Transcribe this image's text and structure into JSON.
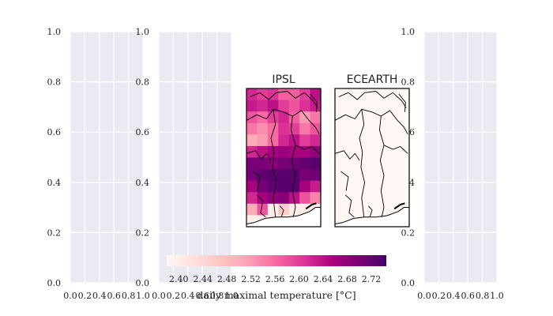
{
  "chart_data": [
    {
      "type": "empty",
      "xlim": [
        0.0,
        1.0
      ],
      "ylim": [
        0.0,
        1.0
      ],
      "x_ticks": [
        "0.0",
        "0.2",
        "0.4",
        "0.6",
        "0.8",
        "1.0"
      ],
      "y_ticks": [
        "0.0",
        "0.2",
        "0.4",
        "0.6",
        "0.8",
        "1.0"
      ],
      "grid": true,
      "background": "#eaeaf2"
    },
    {
      "type": "empty",
      "xlim": [
        0.0,
        1.0
      ],
      "ylim": [
        0.0,
        1.0
      ],
      "x_ticks": [
        "0.0",
        "0.2",
        "0.4",
        "0.6",
        "0.8",
        "1.0"
      ],
      "y_ticks": [
        "0.0",
        "0.2",
        "0.4",
        "0.6",
        "0.8",
        "1.0"
      ],
      "grid": true,
      "background": "#eaeaf2"
    },
    {
      "type": "heatmap",
      "title": "IPSL",
      "colormap": "RdPu",
      "range": [
        2.38,
        2.745
      ],
      "values": [
        [
          2.62,
          2.6,
          2.61,
          2.57,
          2.57,
          2.6,
          2.64
        ],
        [
          2.63,
          2.62,
          2.64,
          2.6,
          2.58,
          2.61,
          2.63
        ],
        [
          2.58,
          2.56,
          2.6,
          2.62,
          2.57,
          2.52,
          2.55
        ],
        [
          2.55,
          2.53,
          2.56,
          2.61,
          2.6,
          2.55,
          2.58
        ],
        [
          2.5,
          2.52,
          2.56,
          2.62,
          2.64,
          2.6,
          2.62
        ],
        [
          2.62,
          2.64,
          2.66,
          2.67,
          2.66,
          2.66,
          2.68
        ],
        [
          2.7,
          2.7,
          2.69,
          2.7,
          2.71,
          2.72,
          2.73
        ],
        [
          2.7,
          2.72,
          2.73,
          2.73,
          2.73,
          2.7,
          2.71
        ],
        [
          2.66,
          2.7,
          2.72,
          2.73,
          2.73,
          2.66,
          2.63
        ],
        [
          2.62,
          2.66,
          2.68,
          2.69,
          2.64,
          2.58,
          2.54
        ],
        [
          2.5,
          2.58,
          2.4,
          2.46,
          2.4,
          2.4,
          2.4
        ],
        [
          2.4,
          2.4,
          2.4,
          2.4,
          2.4,
          2.4,
          2.4
        ]
      ]
    },
    {
      "type": "heatmap",
      "title": "ECEARTH",
      "colormap": "RdPu",
      "range": [
        2.38,
        2.745
      ],
      "values": [
        [
          2.38,
          2.38,
          2.38,
          2.38,
          2.38,
          2.38,
          2.38
        ],
        [
          2.38,
          2.38,
          2.38,
          2.38,
          2.38,
          2.38,
          2.38
        ],
        [
          2.38,
          2.38,
          2.38,
          2.38,
          2.38,
          2.38,
          2.38
        ],
        [
          2.38,
          2.38,
          2.38,
          2.38,
          2.38,
          2.38,
          2.38
        ],
        [
          2.38,
          2.38,
          2.38,
          2.38,
          2.38,
          2.38,
          2.38
        ],
        [
          2.38,
          2.38,
          2.38,
          2.38,
          2.38,
          2.38,
          2.38
        ],
        [
          2.38,
          2.38,
          2.38,
          2.38,
          2.38,
          2.38,
          2.38
        ],
        [
          2.38,
          2.38,
          2.38,
          2.38,
          2.38,
          2.38,
          2.38
        ],
        [
          2.38,
          2.38,
          2.38,
          2.38,
          2.38,
          2.38,
          2.38
        ],
        [
          2.38,
          2.38,
          2.38,
          2.38,
          2.38,
          2.38,
          2.38
        ],
        [
          2.38,
          2.38,
          2.38,
          2.38,
          2.38,
          2.38,
          2.38
        ],
        [
          2.38,
          2.38,
          2.38,
          2.38,
          2.38,
          2.38,
          2.38
        ]
      ]
    },
    {
      "type": "empty",
      "xlim": [
        0.0,
        1.0
      ],
      "ylim": [
        0.0,
        1.0
      ],
      "x_ticks": [
        "0.0",
        "0.2",
        "0.4",
        "0.6",
        "0.8",
        "1.0"
      ],
      "y_ticks": [
        "0.0",
        "0.2",
        "0.4",
        "0.6",
        "0.8",
        "1.0"
      ],
      "grid": true,
      "background": "#eaeaf2"
    }
  ],
  "colorbar": {
    "label": "daily maximal temperature [°C]",
    "range": [
      2.38,
      2.745
    ],
    "ticks": [
      "2.40",
      "2.44",
      "2.48",
      "2.52",
      "2.56",
      "2.60",
      "2.64",
      "2.68",
      "2.72"
    ],
    "colors": [
      "#fff7f3",
      "#fde0dd",
      "#fcc5c0",
      "#fa9fb5",
      "#f768a1",
      "#dd3497",
      "#ae017e",
      "#7a0177",
      "#49006a"
    ]
  }
}
